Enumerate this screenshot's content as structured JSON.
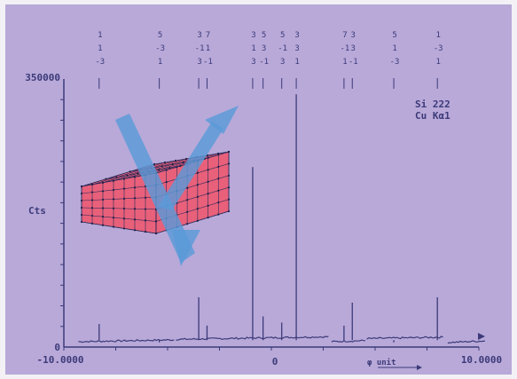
{
  "chart_data": {
    "type": "line",
    "title": "",
    "xlabel": "",
    "ylabel": "Cts",
    "x_tick_labels": [
      "-10.0000",
      "0",
      "10.0000"
    ],
    "y_tick_labels": [
      "0",
      "350000"
    ],
    "xlim": [
      -10,
      10
    ],
    "ylim": [
      0,
      350000
    ],
    "x_axis_symbol": "φ unit",
    "legend": "none",
    "grid": false,
    "annotation": {
      "line1": "Si 222",
      "line2": "Cu Kα1"
    },
    "baseline_segments": [
      {
        "x": [
          -9.3,
          -4.6
        ],
        "y": [
          7000,
          9500
        ]
      },
      {
        "x": [
          -4.6,
          2.8
        ],
        "y": [
          10000,
          13500
        ]
      },
      {
        "x": [
          2.9,
          4.6
        ],
        "y": [
          7000,
          8500
        ]
      },
      {
        "x": [
          4.6,
          8.3
        ],
        "y": [
          11000,
          13000
        ]
      },
      {
        "x": [
          8.5,
          10.3
        ],
        "y": [
          6000,
          8000
        ]
      }
    ],
    "peaks": [
      {
        "x": -8.3,
        "y": 30000,
        "hkl": [
          "1",
          "1",
          "-3"
        ]
      },
      {
        "x": -5.4,
        "y": 6000,
        "hkl": [
          "5",
          "-3",
          "1"
        ]
      },
      {
        "x": -3.5,
        "y": 65000,
        "hkl": [
          "3",
          "-1",
          "3"
        ]
      },
      {
        "x": -3.1,
        "y": 28000,
        "hkl": [
          "7",
          "1",
          "-1"
        ]
      },
      {
        "x": -0.9,
        "y": 235000,
        "hkl": [
          "3",
          "1",
          "3"
        ]
      },
      {
        "x": -0.4,
        "y": 40000,
        "hkl": [
          "5",
          "3",
          "-1"
        ]
      },
      {
        "x": 0.5,
        "y": 32000,
        "hkl": [
          "5",
          "-1",
          "3"
        ]
      },
      {
        "x": 1.2,
        "y": 330000,
        "hkl": [
          "3",
          "3",
          "1"
        ]
      },
      {
        "x": 3.5,
        "y": 28000,
        "hkl": [
          "7",
          "-1",
          "1"
        ]
      },
      {
        "x": 3.9,
        "y": 58000,
        "hkl": [
          "3",
          "3",
          "-1"
        ]
      },
      {
        "x": 5.9,
        "y": 6000,
        "hkl": [
          "5",
          "1",
          "-3"
        ]
      },
      {
        "x": 8.0,
        "y": 65000,
        "hkl": [
          "1",
          "-3",
          "1"
        ]
      }
    ],
    "series": [
      {
        "values": []
      }
    ],
    "colors": {
      "background": "#b8a9d9",
      "trace": "#3c3a78",
      "crystal": "#e8607a",
      "beam": "#5a9ad8"
    }
  }
}
